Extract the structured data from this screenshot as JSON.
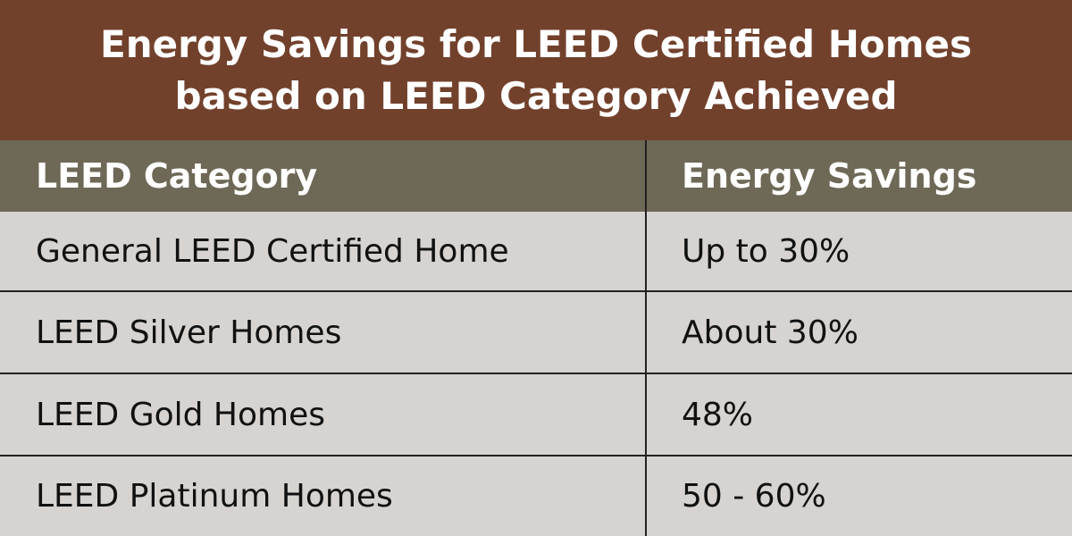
{
  "title": {
    "line1": "Energy Savings for LEED Certified Homes",
    "line2": "based on LEED Category Achieved"
  },
  "table": {
    "headers": [
      "LEED Category",
      "Energy Savings"
    ],
    "rows": [
      [
        "General LEED Certified Home",
        "Up to 30%"
      ],
      [
        "LEED Silver Homes",
        "About 30%"
      ],
      [
        "LEED Gold Homes",
        "48%"
      ],
      [
        "LEED Platinum Homes",
        "50 - 60%"
      ]
    ]
  },
  "colors": {
    "title_background": "#72412c",
    "header_background": "#6e6856",
    "body_background": "#d6d3d0",
    "title_text": "#ffffff",
    "body_text": "#111111",
    "grid_lines": "#222222"
  }
}
